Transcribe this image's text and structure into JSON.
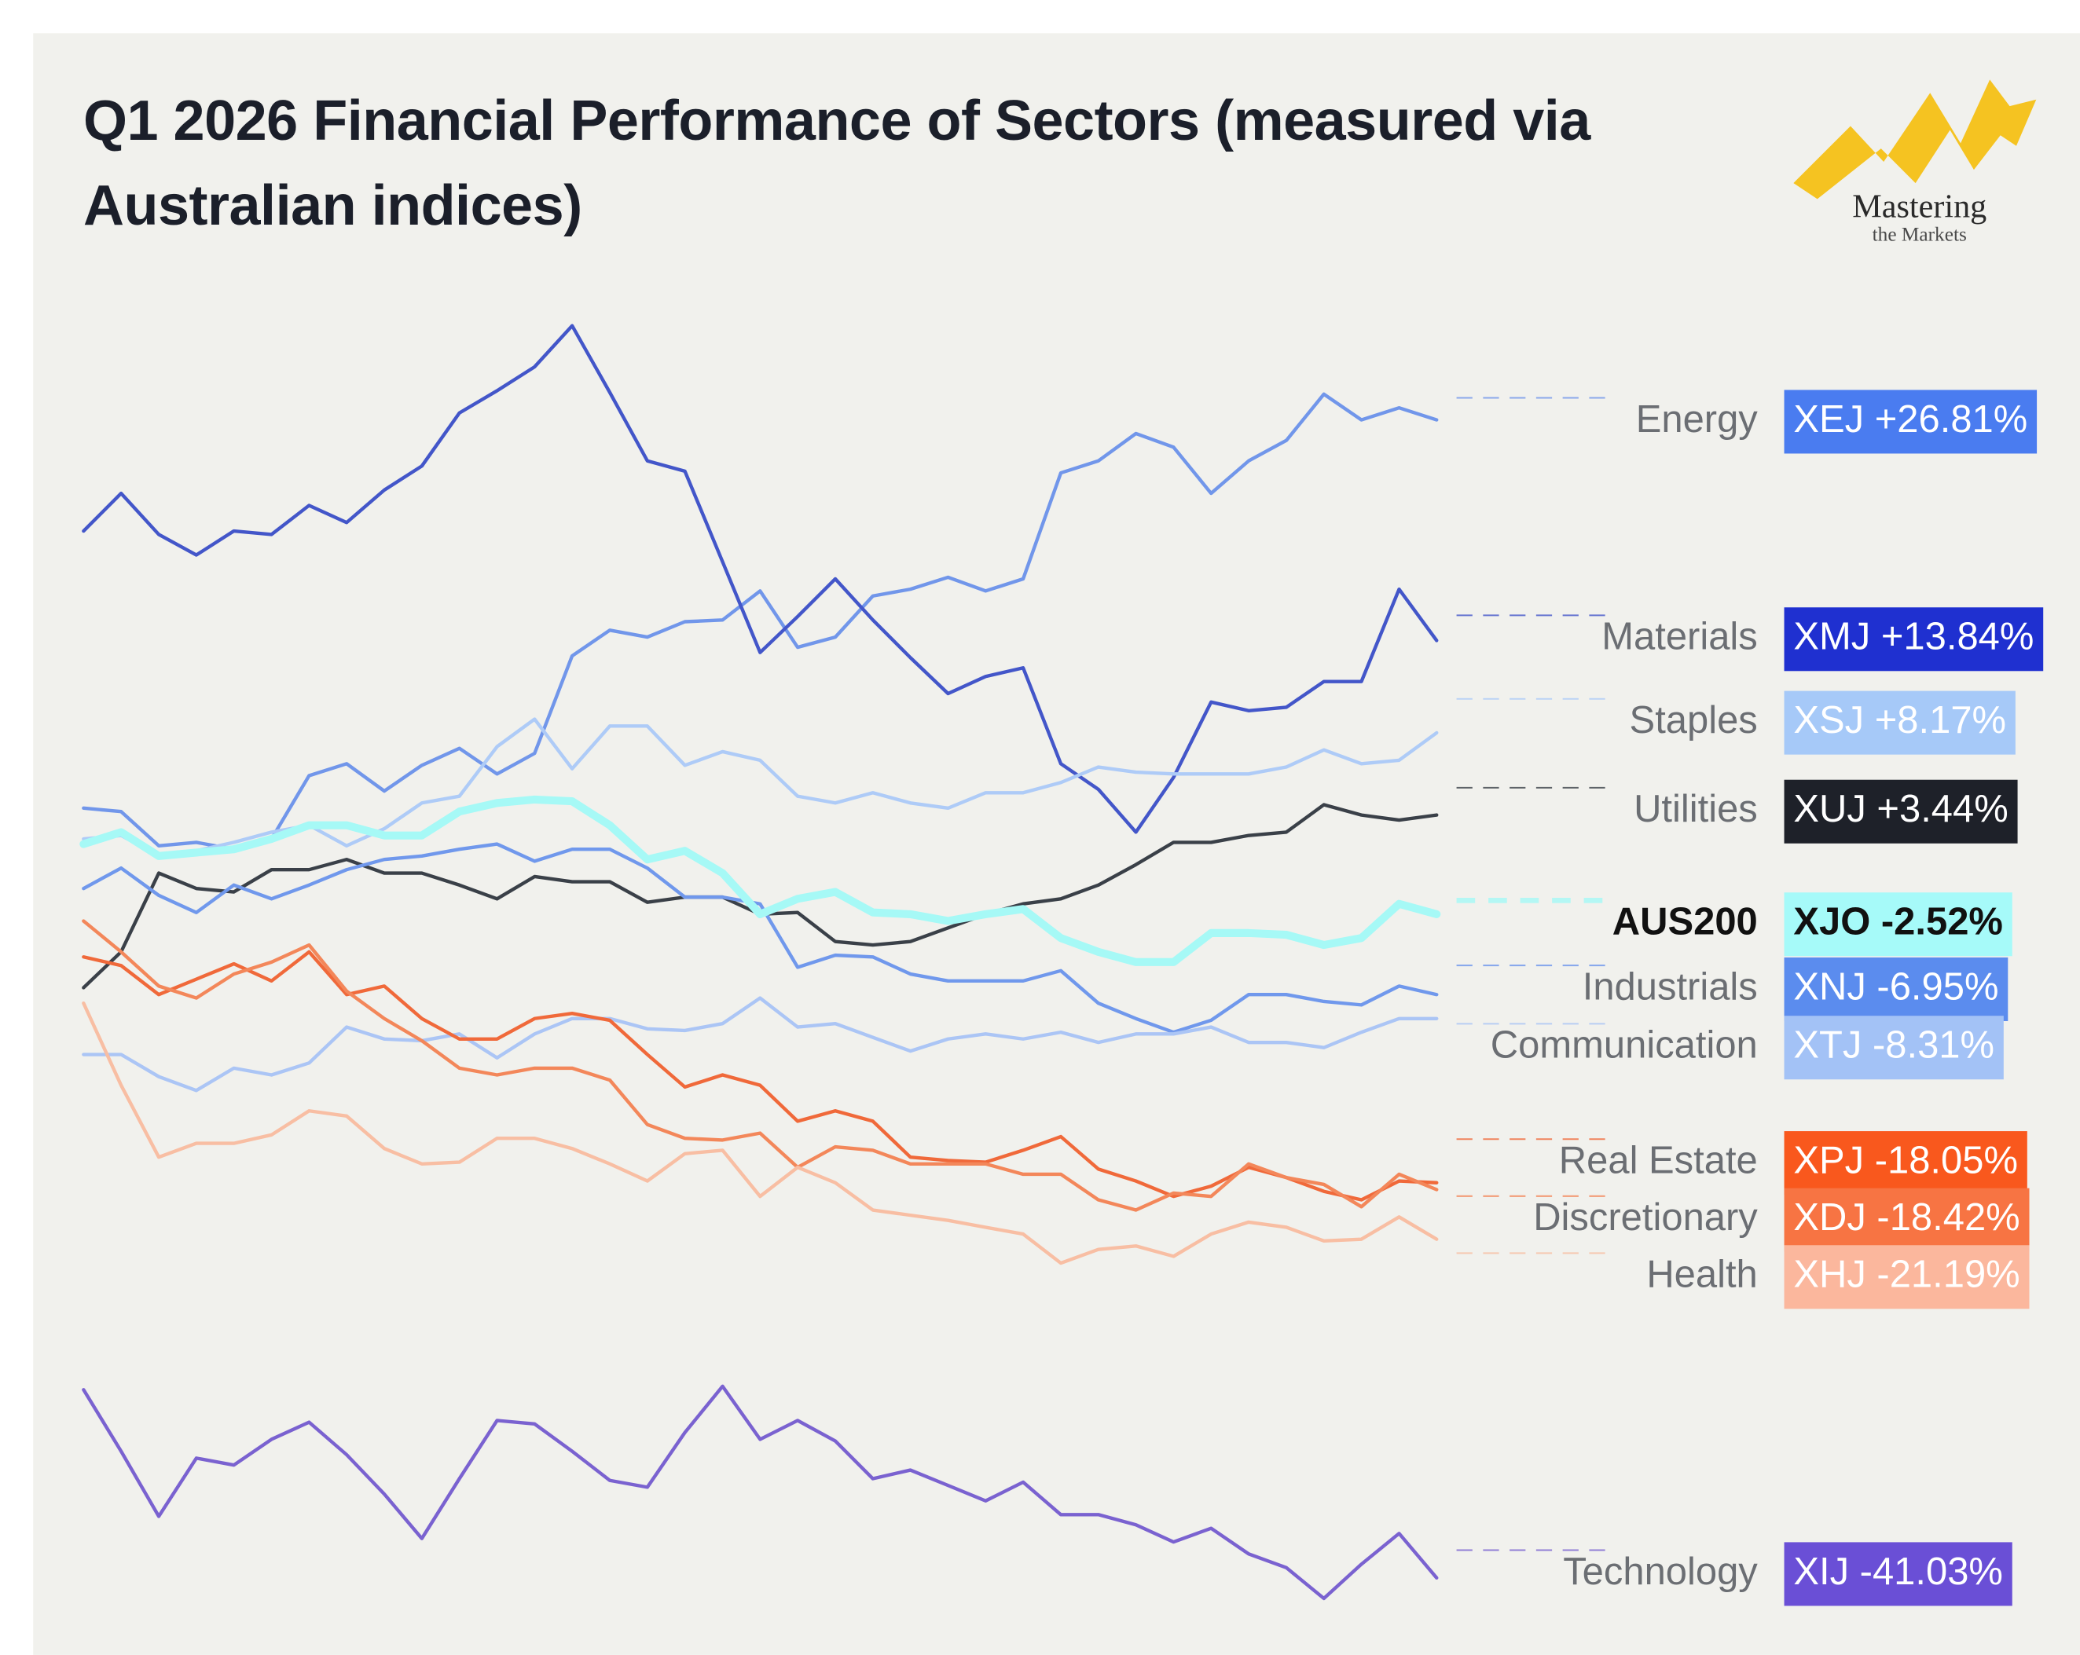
{
  "chart_data": {
    "type": "line",
    "title": "Q1 2026 Financial Performance of Sectors (measured via Australian indices)",
    "brand": {
      "name": "Mastering",
      "tagline": "the Markets"
    },
    "ylim": [
      -45,
      35
    ],
    "series": [
      {
        "name": "Energy",
        "badge": "XEJ +26.81%",
        "color": "#7196ea",
        "badge_color": "#4a7cf0",
        "values": [
          4.0,
          3.8,
          1.8,
          2.0,
          1.6,
          2.2,
          5.9,
          6.6,
          5.0,
          6.5,
          7.5,
          6.0,
          7.2,
          12.9,
          14.4,
          14.0,
          14.9,
          15.0,
          16.7,
          13.4,
          14.0,
          16.4,
          16.8,
          17.5,
          16.7,
          17.4,
          23.6,
          24.3,
          25.9,
          25.1,
          22.4,
          24.3,
          25.5,
          28.2,
          26.7,
          27.4,
          26.7
        ]
      },
      {
        "name": "Materials",
        "badge": "XMJ +13.84%",
        "color": "#4356c9",
        "badge_color": "#1f30d0",
        "values": [
          20.2,
          22.4,
          20.0,
          18.8,
          20.2,
          20.0,
          21.7,
          20.7,
          22.6,
          24.0,
          27.1,
          28.4,
          29.8,
          32.2,
          28.3,
          24.3,
          23.7,
          18.4,
          13.1,
          15.2,
          17.4,
          15.0,
          12.8,
          10.7,
          11.7,
          12.2,
          6.6,
          5.1,
          2.6,
          5.8,
          10.2,
          9.7,
          9.9,
          11.4,
          11.4,
          16.8,
          13.8
        ]
      },
      {
        "name": "Staples",
        "badge": "XSJ +8.17%",
        "color": "#aecbf7",
        "badge_color": "#a6c9f8",
        "values": [
          2.2,
          2.4,
          1.2,
          1.5,
          2.0,
          2.6,
          3.0,
          1.8,
          2.8,
          4.3,
          4.7,
          7.6,
          9.2,
          6.3,
          8.8,
          8.8,
          6.5,
          7.3,
          6.8,
          4.7,
          4.3,
          4.9,
          4.3,
          4.0,
          4.9,
          4.9,
          5.5,
          6.4,
          6.1,
          6.0,
          6.0,
          6.0,
          6.4,
          7.4,
          6.6,
          6.8,
          8.4
        ]
      },
      {
        "name": "Utilities",
        "badge": "XUJ +3.44%",
        "color": "#3a4048",
        "badge_color": "#1e2129",
        "values": [
          -6.5,
          -4.4,
          0.2,
          -0.7,
          -0.9,
          0.4,
          0.4,
          1.0,
          0.2,
          0.2,
          -0.5,
          -1.3,
          0,
          -0.3,
          -0.3,
          -1.5,
          -1.2,
          -1.2,
          -2.2,
          -2.1,
          -3.8,
          -4.0,
          -3.8,
          -3.0,
          -2.2,
          -1.6,
          -1.3,
          -0.5,
          0.7,
          2.0,
          2.0,
          2.4,
          2.6,
          4.2,
          3.6,
          3.3,
          3.6
        ]
      },
      {
        "name": "AUS200",
        "badge": "XJO -2.52%",
        "color": "#a6f9f6",
        "badge_color": "#a6faf9",
        "emphasis": true,
        "values": [
          1.9,
          2.6,
          1.2,
          1.4,
          1.6,
          2.2,
          3.0,
          3.0,
          2.4,
          2.4,
          3.8,
          4.3,
          4.5,
          4.4,
          3.0,
          1.0,
          1.5,
          0.2,
          -2.2,
          -1.3,
          -0.9,
          -2.1,
          -2.2,
          -2.6,
          -2.2,
          -1.9,
          -3.6,
          -4.4,
          -5.0,
          -5.0,
          -3.3,
          -3.3,
          -3.4,
          -4.0,
          -3.6,
          -1.6,
          -2.2
        ]
      },
      {
        "name": "Industrials",
        "badge": "XNJ -6.95%",
        "color": "#7098ec",
        "badge_color": "#5b8cee",
        "values": [
          -0.7,
          0.5,
          -1.1,
          -2.1,
          -0.5,
          -1.3,
          -0.5,
          0.4,
          1.0,
          1.2,
          1.6,
          1.9,
          0.9,
          1.6,
          1.6,
          0.5,
          -1.2,
          -1.2,
          -1.6,
          -5.3,
          -4.6,
          -4.7,
          -5.7,
          -6.1,
          -6.1,
          -6.1,
          -5.5,
          -7.4,
          -8.3,
          -9.1,
          -8.4,
          -6.9,
          -6.9,
          -7.3,
          -7.5,
          -6.4,
          -6.9
        ]
      },
      {
        "name": "Communication",
        "badge": "XTJ -8.31%",
        "color": "#abc5f5",
        "badge_color": "#a3c2f6",
        "values": [
          -10.4,
          -10.4,
          -11.7,
          -12.5,
          -11.2,
          -11.6,
          -10.9,
          -8.8,
          -9.5,
          -9.6,
          -9.2,
          -10.6,
          -9.2,
          -8.3,
          -8.3,
          -8.9,
          -9.0,
          -8.6,
          -7.1,
          -8.8,
          -8.6,
          -9.4,
          -10.2,
          -9.5,
          -9.2,
          -9.5,
          -9.1,
          -9.7,
          -9.2,
          -9.2,
          -8.8,
          -9.7,
          -9.7,
          -10.0,
          -9.1,
          -8.3,
          -8.3
        ]
      },
      {
        "name": "Real Estate",
        "badge": "XPJ -18.05%",
        "color": "#f0693a",
        "badge_color": "#f9581d",
        "values": [
          -4.7,
          -5.2,
          -6.9,
          -6.0,
          -5.1,
          -6.1,
          -4.4,
          -6.9,
          -6.4,
          -8.3,
          -9.5,
          -9.5,
          -8.3,
          -8.0,
          -8.4,
          -10.4,
          -12.3,
          -11.6,
          -12.2,
          -14.3,
          -13.7,
          -14.3,
          -16.4,
          -16.6,
          -16.7,
          -16.0,
          -15.2,
          -17.1,
          -17.8,
          -18.7,
          -18.1,
          -17.0,
          -17.6,
          -18.4,
          -18.9,
          -17.8,
          -17.9
        ]
      },
      {
        "name": "Discretionary",
        "badge": "XDJ -18.42%",
        "color": "#f3875a",
        "badge_color": "#f77443",
        "values": [
          -2.6,
          -4.4,
          -6.4,
          -7.1,
          -5.7,
          -5.0,
          -4.0,
          -6.7,
          -8.3,
          -9.6,
          -11.2,
          -11.6,
          -11.2,
          -11.2,
          -11.9,
          -14.5,
          -15.3,
          -15.4,
          -15.0,
          -17.0,
          -15.8,
          -16.0,
          -16.8,
          -16.8,
          -16.8,
          -17.4,
          -17.4,
          -18.9,
          -19.5,
          -18.5,
          -18.7,
          -16.8,
          -17.6,
          -18.0,
          -19.3,
          -17.4,
          -18.3
        ]
      },
      {
        "name": "Health",
        "badge": "XHJ -21.19%",
        "color": "#f8bea3",
        "badge_color": "#fbb79d",
        "values": [
          -7.4,
          -12.2,
          -16.4,
          -15.6,
          -15.6,
          -15.1,
          -13.7,
          -14.0,
          -15.9,
          -16.8,
          -16.7,
          -15.3,
          -15.3,
          -15.9,
          -16.8,
          -17.8,
          -16.2,
          -16.0,
          -18.7,
          -17.0,
          -17.9,
          -19.5,
          -19.8,
          -20.1,
          -20.5,
          -20.9,
          -22.6,
          -21.8,
          -21.6,
          -22.2,
          -20.9,
          -20.2,
          -20.5,
          -21.3,
          -21.2,
          -19.9,
          -21.2
        ]
      },
      {
        "name": "Technology",
        "badge": "XIJ -41.03%",
        "color": "#7a62d0",
        "badge_color": "#6a4fd6",
        "values": [
          -30.0,
          -33.6,
          -37.4,
          -34.0,
          -34.4,
          -32.9,
          -31.9,
          -33.8,
          -36.1,
          -38.7,
          -35.2,
          -31.8,
          -32.0,
          -33.6,
          -35.3,
          -35.7,
          -32.5,
          -29.8,
          -32.9,
          -31.8,
          -33.0,
          -35.2,
          -34.7,
          -35.6,
          -36.5,
          -35.4,
          -37.3,
          -37.3,
          -37.9,
          -38.9,
          -38.1,
          -39.6,
          -40.4,
          -42.2,
          -40.2,
          -38.4,
          -41.0
        ]
      }
    ]
  }
}
